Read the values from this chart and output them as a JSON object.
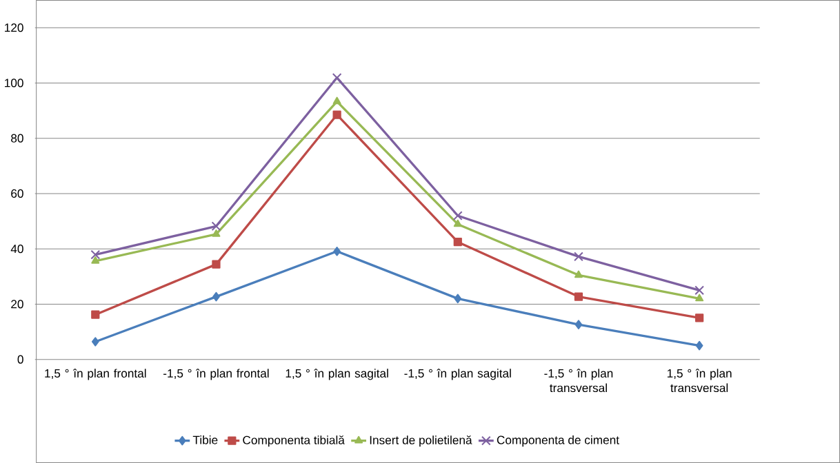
{
  "chart_data": {
    "type": "line",
    "categories": [
      "1,5 ° în plan frontal",
      "-1,5 ° în plan frontal",
      "1,5 ° în plan sagital",
      "-1,5 ° în plan sagital",
      "-1,5 ° în plan transversal",
      "1,5 ° în plan transversal"
    ],
    "series": [
      {
        "name": "Tibie",
        "color": "#4a7ebb",
        "marker": "diamond",
        "values": [
          6.4,
          22.7,
          39.1,
          22,
          12.6,
          5
        ]
      },
      {
        "name": "Componenta tibială",
        "color": "#be4b48",
        "marker": "square",
        "values": [
          16.2,
          34.4,
          88.5,
          42.5,
          22.7,
          15
        ]
      },
      {
        "name": "Insert de polietilenă",
        "color": "#98b954",
        "marker": "triangle",
        "values": [
          35.6,
          45.3,
          93.3,
          48.9,
          30.5,
          22
        ]
      },
      {
        "name": "Componenta de ciment",
        "color": "#7d60a0",
        "marker": "cross",
        "values": [
          37.9,
          48.2,
          101.9,
          52,
          37.2,
          25
        ]
      }
    ],
    "ylim": [
      0,
      120
    ],
    "yticks": [
      0,
      20,
      40,
      60,
      80,
      100,
      120
    ],
    "grid": "y",
    "legend": "bottom"
  }
}
